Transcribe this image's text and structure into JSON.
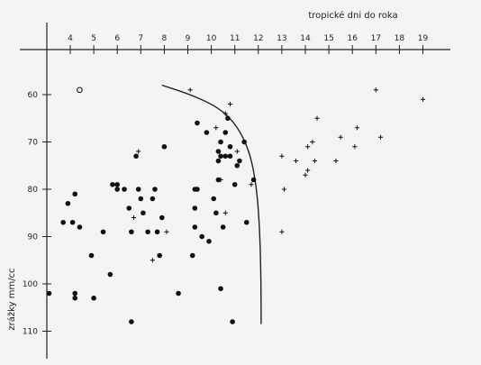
{
  "chart_data": {
    "type": "scatter",
    "title": "",
    "xlabel": "tropické dni do roka",
    "ylabel": "zrážky mm/cc",
    "x_ticks": [
      "4",
      "5",
      "6",
      "7",
      "8",
      "9",
      "10",
      "11",
      "12",
      "13",
      "14",
      "15",
      "16",
      "17",
      "18",
      "19"
    ],
    "y_ticks": [
      "60",
      "70",
      "80",
      "90",
      "100",
      "110"
    ],
    "xlim": [
      3,
      19.5
    ],
    "ylim": [
      54,
      115
    ],
    "y_inverted": true,
    "grid": false,
    "series": [
      {
        "marker": "filled-circle",
        "points": [
          [
            3.1,
            102
          ],
          [
            3.7,
            87
          ],
          [
            3.9,
            83
          ],
          [
            4.1,
            87
          ],
          [
            4.2,
            81
          ],
          [
            4.2,
            102
          ],
          [
            4.2,
            103
          ],
          [
            4.4,
            88
          ],
          [
            4.9,
            94
          ],
          [
            5.0,
            103
          ],
          [
            5.4,
            89
          ],
          [
            5.7,
            98
          ],
          [
            5.8,
            79
          ],
          [
            6.0,
            80
          ],
          [
            6.0,
            79
          ],
          [
            6.3,
            80
          ],
          [
            6.5,
            84
          ],
          [
            6.6,
            89
          ],
          [
            6.6,
            108
          ],
          [
            6.8,
            73
          ],
          [
            6.9,
            80
          ],
          [
            7.0,
            82
          ],
          [
            7.1,
            85
          ],
          [
            7.3,
            89
          ],
          [
            7.5,
            82
          ],
          [
            7.6,
            80
          ],
          [
            7.7,
            89
          ],
          [
            7.8,
            94
          ],
          [
            7.9,
            86
          ],
          [
            8.0,
            71
          ],
          [
            8.6,
            102
          ],
          [
            9.2,
            94
          ],
          [
            9.3,
            88
          ],
          [
            9.3,
            84
          ],
          [
            9.3,
            80
          ],
          [
            9.4,
            66
          ],
          [
            9.4,
            80
          ],
          [
            9.6,
            90
          ],
          [
            9.8,
            68
          ],
          [
            9.9,
            91
          ],
          [
            10.1,
            82
          ],
          [
            10.2,
            85
          ],
          [
            10.3,
            78
          ],
          [
            10.3,
            72
          ],
          [
            10.3,
            74
          ],
          [
            10.4,
            70
          ],
          [
            10.4,
            73
          ],
          [
            10.4,
            101
          ],
          [
            10.5,
            88
          ],
          [
            10.6,
            73
          ],
          [
            10.6,
            68
          ],
          [
            10.7,
            65
          ],
          [
            10.8,
            73
          ],
          [
            10.8,
            71
          ],
          [
            10.9,
            108
          ],
          [
            11.0,
            79
          ],
          [
            11.1,
            75
          ],
          [
            11.2,
            74
          ],
          [
            11.4,
            70
          ],
          [
            11.5,
            87
          ],
          [
            11.8,
            78
          ]
        ]
      },
      {
        "marker": "plus",
        "points": [
          [
            6.9,
            72
          ],
          [
            6.7,
            86
          ],
          [
            7.5,
            95
          ],
          [
            8.1,
            89
          ],
          [
            9.1,
            59
          ],
          [
            10.2,
            67
          ],
          [
            10.4,
            78
          ],
          [
            10.6,
            64
          ],
          [
            10.8,
            62
          ],
          [
            11.1,
            72
          ],
          [
            10.6,
            85
          ],
          [
            11.7,
            79
          ],
          [
            13.0,
            73
          ],
          [
            13.1,
            80
          ],
          [
            13.0,
            89
          ],
          [
            13.6,
            74
          ],
          [
            14.0,
            77
          ],
          [
            14.1,
            76
          ],
          [
            14.1,
            71
          ],
          [
            14.3,
            70
          ],
          [
            14.4,
            74
          ],
          [
            14.5,
            65
          ],
          [
            15.3,
            74
          ],
          [
            15.5,
            69
          ],
          [
            16.1,
            71
          ],
          [
            16.2,
            67
          ],
          [
            17.0,
            59
          ],
          [
            17.2,
            69
          ],
          [
            19.0,
            61
          ]
        ]
      },
      {
        "marker": "open-circle",
        "points": [
          [
            4.4,
            59
          ]
        ]
      }
    ],
    "boundary_curve": [
      [
        7.9,
        58
      ],
      [
        9.0,
        59.8
      ],
      [
        9.8,
        61.5
      ],
      [
        10.4,
        63.2
      ],
      [
        10.9,
        65.5
      ],
      [
        11.3,
        68.5
      ],
      [
        11.6,
        72
      ],
      [
        11.8,
        76
      ],
      [
        11.95,
        81
      ],
      [
        12.05,
        88
      ],
      [
        12.1,
        96
      ],
      [
        12.12,
        104
      ],
      [
        12.12,
        108.5
      ]
    ]
  }
}
